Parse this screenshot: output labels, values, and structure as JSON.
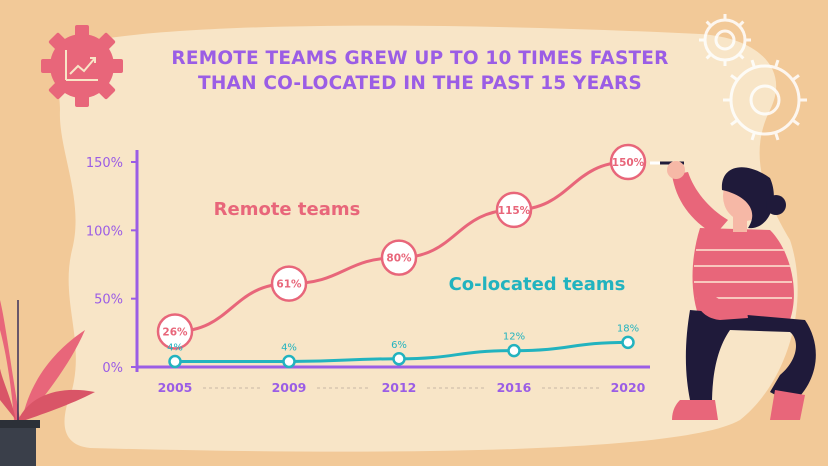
{
  "title_lines": [
    "REMOTE TEAMS GREW UP TO 10 TIMES FASTER",
    "THAN CO-LOCATED IN THE PAST 15 YEARS"
  ],
  "colors": {
    "background": "#f2c998",
    "panel": "#f8e5c7",
    "title": "#9b5de5",
    "axis": "#9b5de5",
    "remote": "#e8667a",
    "colocated": "#22b3bf",
    "gear": "#e8667a"
  },
  "icons": [
    "chart-gear-icon",
    "outline-gears-icon",
    "plant-illustration",
    "person-illustration"
  ],
  "chart_data": {
    "type": "line",
    "title": "REMOTE TEAMS GREW UP TO 10 TIMES FASTER THAN CO-LOCATED IN THE PAST 15 YEARS",
    "categories": [
      "2005",
      "2009",
      "2012",
      "2016",
      "2020"
    ],
    "y_ticks": [
      0,
      50,
      100,
      150
    ],
    "y_tick_labels": [
      "0%",
      "50%",
      "100%",
      "150%"
    ],
    "ylim": [
      0,
      150
    ],
    "grid": false,
    "series": [
      {
        "name": "Remote teams",
        "values": [
          26,
          61,
          80,
          115,
          150
        ],
        "labels": [
          "26%",
          "61%",
          "80%",
          "115%",
          "150%"
        ],
        "color": "#e8667a"
      },
      {
        "name": "Co-located teams",
        "values": [
          4,
          4,
          6,
          12,
          18
        ],
        "labels": [
          "4%",
          "4%",
          "6%",
          "12%",
          "18%"
        ],
        "color": "#22b3bf"
      }
    ]
  }
}
